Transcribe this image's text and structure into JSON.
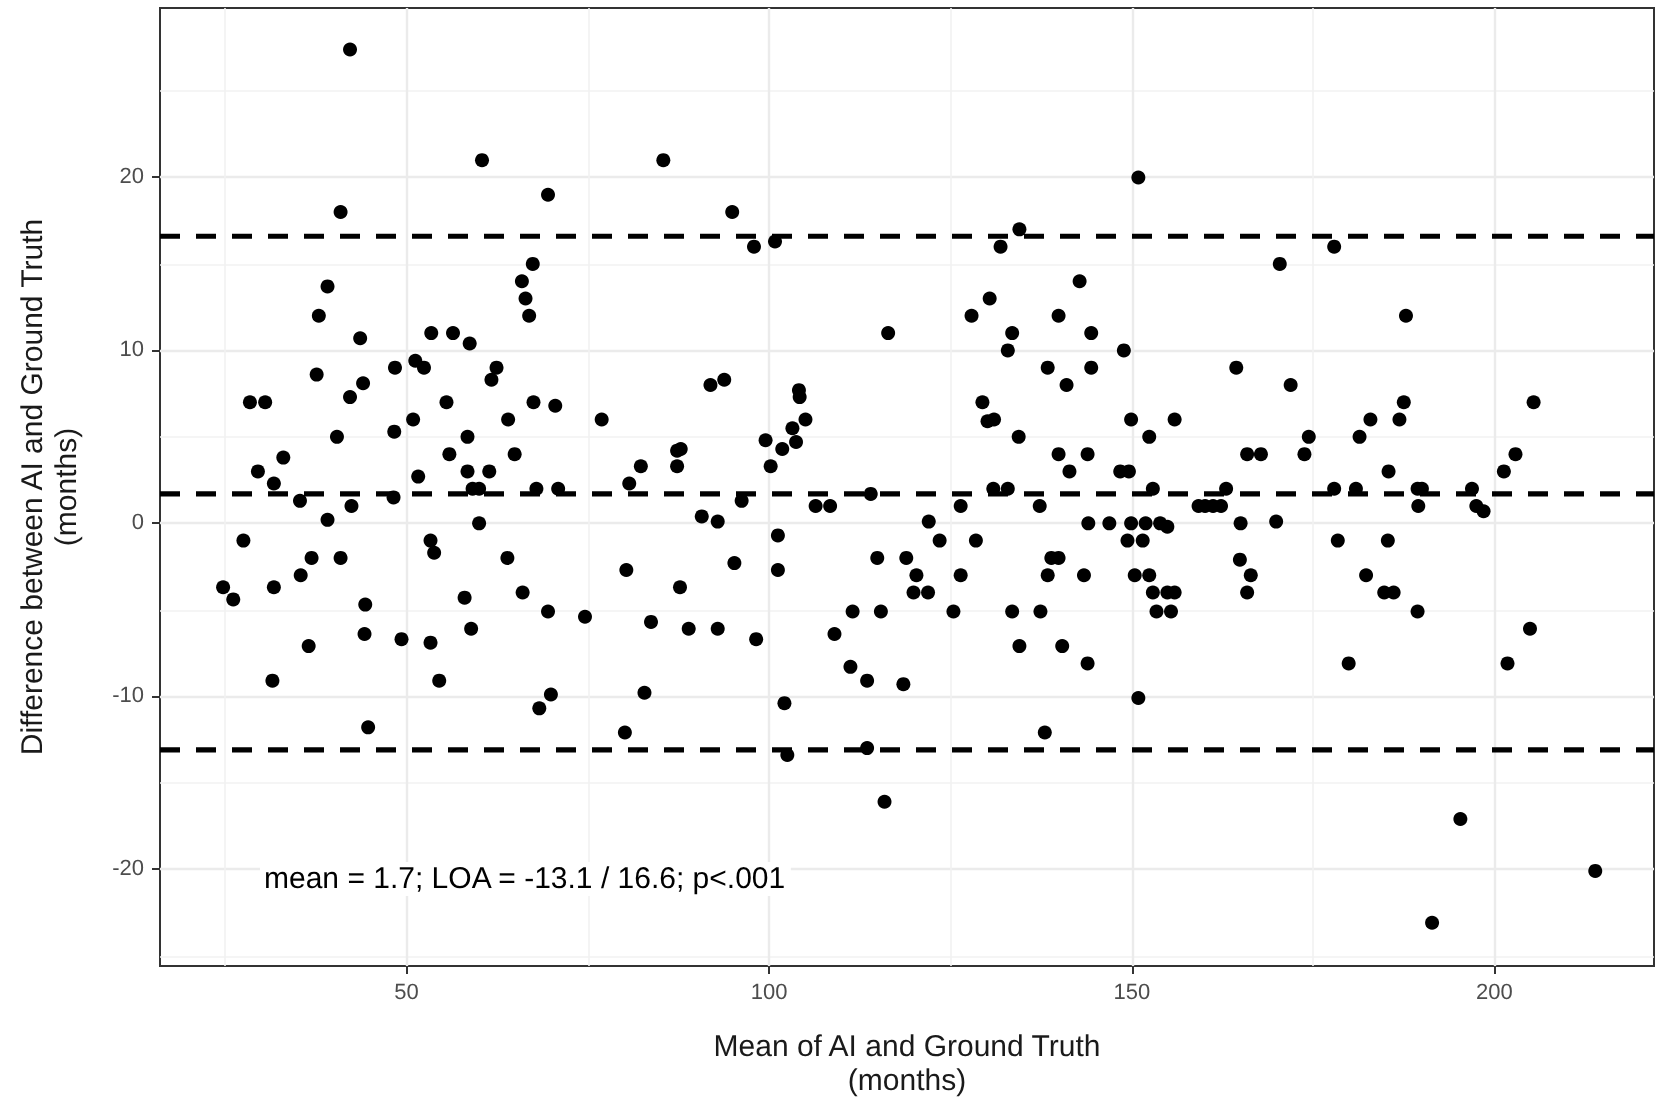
{
  "chart_data": {
    "type": "scatter",
    "xlabel": "Mean of AI and Ground Truth\n(months)",
    "ylabel": "Difference between AI and Ground Truth\n(months)",
    "annotations": [
      "mean = 1.7; LOA = -13.1 / 16.6; p<.001"
    ],
    "xlim": [
      16,
      222
    ],
    "ylim": [
      -25.6,
      29.8
    ],
    "xticks": [
      50,
      100,
      150,
      200
    ],
    "yticks": [
      -20,
      -10,
      0,
      10,
      20
    ],
    "grid": true,
    "marker": "circle",
    "ref_lines": [
      {
        "axis": "y",
        "value": 16.6,
        "color": "#000000",
        "line_style": "dashed"
      },
      {
        "axis": "y",
        "value": 1.7,
        "color": "#000000",
        "line_style": "dashed"
      },
      {
        "axis": "y",
        "value": -13.1,
        "color": "#000000",
        "line_style": "dashed"
      }
    ],
    "series": [
      {
        "color": "#000000",
        "x": [
          42.2,
          60.4,
          85.4,
          69.5,
          40.9,
          67.4,
          65.9,
          66.4,
          66.9,
          39.1,
          37.9,
          43.6,
          53.4,
          56.4,
          58.7,
          62.4,
          61.7,
          51.2,
          52.4,
          48.4,
          37.6,
          44.0,
          42.2,
          28.4,
          30.5,
          55.5,
          67.5,
          70.5,
          76.9,
          64.0,
          50.9,
          48.3,
          40.4,
          58.4,
          55.9,
          64.9,
          33.0,
          29.5,
          58.4,
          61.4,
          51.6,
          31.7,
          87.3,
          87.8,
          87.3,
          82.3,
          80.7,
          59.1,
          60.0,
          67.9,
          70.9,
          35.3,
          48.2,
          42.4,
          39.1,
          60.0,
          150.9,
          94.9,
          97.9,
          100.8,
          131.9,
          134.5,
          142.8,
          130.4,
          127.9,
          139.9,
          116.4,
          133.5,
          144.4,
          132.9,
          148.9,
          138.4,
          144.4,
          141.0,
          91.9,
          93.8,
          104.1,
          104.2,
          129.4,
          130.1,
          131.0,
          105.0,
          149.9,
          155.9,
          99.5,
          103.2,
          101.8,
          103.7,
          100.2,
          134.4,
          152.4,
          139.9,
          143.9,
          141.4,
          148.4,
          149.6,
          130.9,
          132.9,
          152.9,
          114.0,
          96.2,
          106.4,
          108.4,
          126.4,
          137.3,
          90.7,
          92.9,
          122.0,
          177.9,
          170.4,
          187.8,
          164.4,
          171.9,
          187.5,
          186.9,
          205.4,
          182.9,
          174.4,
          181.4,
          165.9,
          167.8,
          173.8,
          202.9,
          185.4,
          201.3,
          163.0,
          177.9,
          180.9,
          189.4,
          190.0,
          196.9,
          189.5,
          197.5,
          198.5,
          159.2,
          160.1,
          161.2,
          162.3,
          165.0,
          169.9,
          101.2,
          101.2,
          95.2,
          87.7,
          88.9,
          92.9,
          98.2,
          102.1,
          102.5,
          109.0,
          111.5,
          115.4,
          114.9,
          118.9,
          120.3,
          119.9,
          121.9,
          123.5,
          128.5,
          126.4,
          125.4,
          111.2,
          113.5,
          118.5,
          113.5,
          115.9,
          133.5,
          137.4,
          134.5,
          140.4,
          143.9,
          138.0,
          138.4,
          138.9,
          139.9,
          143.4,
          144.0,
          146.9,
          149.9,
          151.9,
          153.9,
          154.9,
          149.4,
          151.5,
          150.4,
          152.4,
          152.9,
          154.9,
          155.9,
          153.4,
          155.4,
          150.9,
          164.9,
          166.4,
          165.9,
          178.4,
          185.3,
          182.3,
          184.8,
          186.1,
          189.4,
          179.9,
          204.9,
          201.8,
          195.3,
          191.4,
          213.9,
          27.5,
          24.7,
          26.1,
          31.7,
          35.4,
          36.9,
          40.9,
          44.3,
          44.2,
          36.5,
          31.5,
          44.7,
          49.3,
          53.3,
          53.8,
          53.3,
          54.5,
          58.0,
          58.9,
          63.9,
          66.0,
          69.5,
          74.6,
          68.3,
          69.9,
          80.3,
          83.7,
          82.8,
          80.1
        ],
        "values": [
          27.4,
          21.0,
          21.0,
          19.0,
          18.0,
          15.0,
          14.0,
          13.0,
          12.0,
          13.7,
          12.0,
          10.7,
          11.0,
          11.0,
          10.4,
          9.0,
          8.3,
          9.4,
          9.0,
          9.0,
          8.6,
          8.1,
          7.3,
          7.0,
          7.0,
          7.0,
          7.0,
          6.8,
          6.0,
          6.0,
          6.0,
          5.3,
          5.0,
          5.0,
          4.0,
          4.0,
          3.8,
          3.0,
          3.0,
          3.0,
          2.7,
          2.3,
          4.2,
          4.3,
          3.3,
          3.3,
          2.3,
          2.0,
          2.0,
          2.0,
          2.0,
          1.3,
          1.5,
          1.0,
          0.2,
          0.0,
          20.0,
          18.0,
          16.0,
          16.3,
          16.0,
          17.0,
          14.0,
          13.0,
          12.0,
          12.0,
          11.0,
          11.0,
          11.0,
          10.0,
          10.0,
          9.0,
          9.0,
          8.0,
          8.0,
          8.3,
          7.7,
          7.3,
          7.0,
          5.9,
          6.0,
          6.0,
          6.0,
          6.0,
          4.8,
          5.5,
          4.3,
          4.7,
          3.3,
          5.0,
          5.0,
          4.0,
          4.0,
          3.0,
          3.0,
          3.0,
          2.0,
          2.0,
          2.0,
          1.7,
          1.3,
          1.0,
          1.0,
          1.0,
          1.0,
          0.4,
          0.1,
          0.1,
          16.0,
          15.0,
          12.0,
          9.0,
          8.0,
          7.0,
          6.0,
          7.0,
          6.0,
          5.0,
          5.0,
          4.0,
          4.0,
          4.0,
          4.0,
          3.0,
          3.0,
          2.0,
          2.0,
          2.0,
          2.0,
          2.0,
          2.0,
          1.0,
          1.0,
          0.7,
          1.0,
          1.0,
          1.0,
          1.0,
          0.0,
          0.1,
          -0.7,
          -2.7,
          -2.3,
          -3.7,
          -6.1,
          -6.1,
          -6.7,
          -10.4,
          -13.4,
          -6.4,
          -5.1,
          -5.1,
          -2.0,
          -2.0,
          -3.0,
          -4.0,
          -4.0,
          -1.0,
          -1.0,
          -3.0,
          -5.1,
          -8.3,
          -9.1,
          -9.3,
          -13.0,
          -16.1,
          -5.1,
          -5.1,
          -7.1,
          -7.1,
          -8.1,
          -12.1,
          -3.0,
          -2.0,
          -2.0,
          -3.0,
          0.0,
          0.0,
          0.0,
          0.0,
          0.0,
          -0.2,
          -1.0,
          -1.0,
          -3.0,
          -3.0,
          -4.0,
          -4.0,
          -4.0,
          -5.1,
          -5.1,
          -10.1,
          -2.1,
          -3.0,
          -4.0,
          -1.0,
          -1.0,
          -3.0,
          -4.0,
          -4.0,
          -5.1,
          -8.1,
          -6.1,
          -8.1,
          -17.1,
          -23.1,
          -20.1,
          -1.0,
          -3.7,
          -4.4,
          -3.7,
          -3.0,
          -2.0,
          -2.0,
          -4.7,
          -6.4,
          -7.1,
          -9.1,
          -11.8,
          -6.7,
          -1.0,
          -1.7,
          -6.9,
          -9.1,
          -4.3,
          -6.1,
          -2.0,
          -4.0,
          -5.1,
          -5.4,
          -10.7,
          -9.9,
          -2.7,
          -5.7,
          -9.8,
          -12.1
        ]
      }
    ]
  }
}
